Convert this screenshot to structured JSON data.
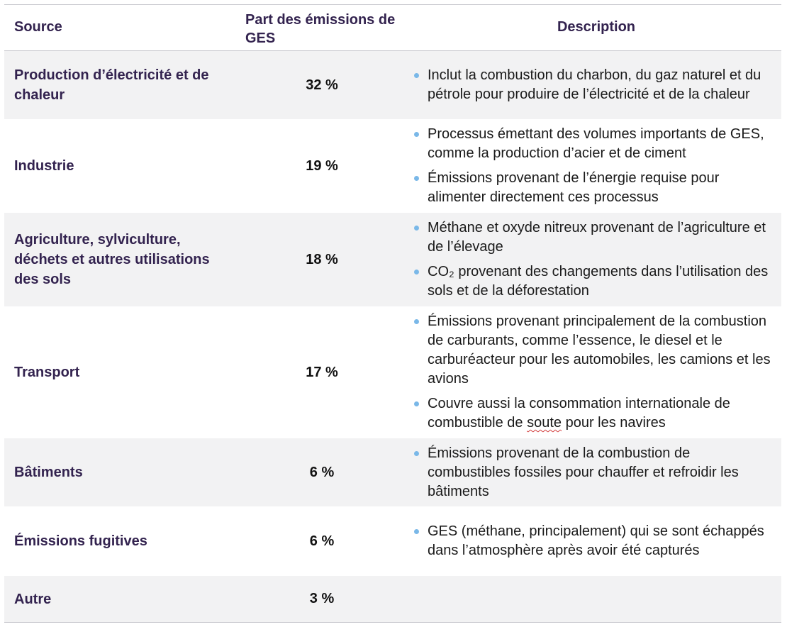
{
  "header": {
    "source": "Source",
    "share": "Part des émissions de GES",
    "description": "Description"
  },
  "rows": [
    {
      "source": "Production d’électricité et de chaleur",
      "share": "32 %",
      "bullets": [
        "Inclut la combustion du charbon, du gaz naturel et du pétrole pour produire de l’électricité et de la chaleur"
      ]
    },
    {
      "source": "Industrie",
      "share": "19 %",
      "bullets": [
        "Processus émettant des volumes importants de GES, comme la production d’acier et de ciment",
        "Émissions provenant de l’énergie requise pour alimenter directement ces processus"
      ]
    },
    {
      "source": "Agriculture, sylviculture, déchets et autres utilisations des sols",
      "share": "18 %",
      "bullets": [
        "Méthane et oxyde nitreux provenant de l’agriculture et de l’élevage",
        "CO₂ provenant des changements dans l’utilisation des sols et de la déforestation"
      ]
    },
    {
      "source": "Transport",
      "share": "17 %",
      "bullets": [
        "Émissions provenant principalement de la combustion de carburants, comme l’essence, le diesel et le carburéacteur pour les automobiles, les camions et les avions",
        "Couvre aussi la consommation internationale de combustible de soute pour les navires"
      ]
    },
    {
      "source": "Bâtiments",
      "share": "6 %",
      "bullets": [
        "Émissions provenant de la combustion de combustibles fossiles pour chauffer et refroidir les bâtiments"
      ]
    },
    {
      "source": "Émissions fugitives",
      "share": "6 %",
      "bullets": [
        "GES (méthane, principalement) qui se sont échappés dans l’atmosphère après avoir été capturés"
      ]
    },
    {
      "source": "Autre",
      "share": "3 %",
      "bullets": []
    }
  ]
}
